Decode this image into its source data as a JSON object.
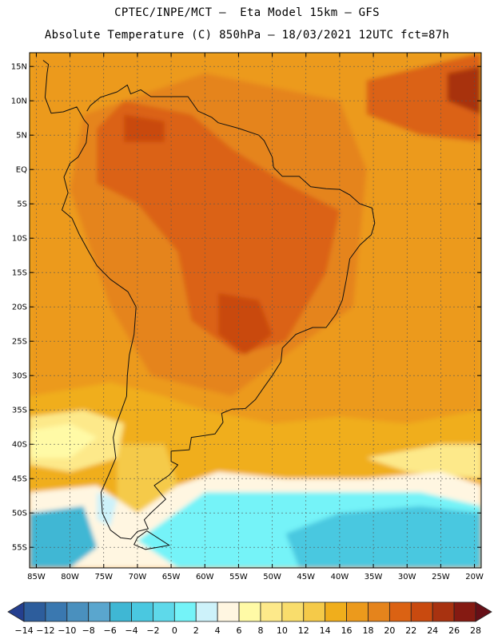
{
  "header": {
    "line1": "CPTEC/INPE/MCT –  Eta Model 15km – GFS",
    "line2": "Absolute Temperature (C) 850hPa – 18/03/2021 12UTC fct=87h"
  },
  "map": {
    "lon_range": [
      -86,
      -19
    ],
    "lat_range": [
      -58,
      17
    ],
    "lat_ticks": [
      {
        "value": 15,
        "label": "15N"
      },
      {
        "value": 10,
        "label": "10N"
      },
      {
        "value": 5,
        "label": "5N"
      },
      {
        "value": 0,
        "label": "EQ"
      },
      {
        "value": -5,
        "label": "5S"
      },
      {
        "value": -10,
        "label": "10S"
      },
      {
        "value": -15,
        "label": "15S"
      },
      {
        "value": -20,
        "label": "20S"
      },
      {
        "value": -25,
        "label": "25S"
      },
      {
        "value": -30,
        "label": "30S"
      },
      {
        "value": -35,
        "label": "35S"
      },
      {
        "value": -40,
        "label": "40S"
      },
      {
        "value": -45,
        "label": "45S"
      },
      {
        "value": -50,
        "label": "50S"
      },
      {
        "value": -55,
        "label": "55S"
      }
    ],
    "lon_ticks": [
      {
        "value": -85,
        "label": "85W"
      },
      {
        "value": -80,
        "label": "80W"
      },
      {
        "value": -75,
        "label": "75W"
      },
      {
        "value": -70,
        "label": "70W"
      },
      {
        "value": -65,
        "label": "65W"
      },
      {
        "value": -60,
        "label": "60W"
      },
      {
        "value": -55,
        "label": "55W"
      },
      {
        "value": -50,
        "label": "50W"
      },
      {
        "value": -45,
        "label": "45W"
      },
      {
        "value": -40,
        "label": "40W"
      },
      {
        "value": -35,
        "label": "35W"
      },
      {
        "value": -30,
        "label": "30W"
      },
      {
        "value": -25,
        "label": "25W"
      },
      {
        "value": -20,
        "label": "20W"
      }
    ],
    "temperature_regions": [
      {
        "level": 16,
        "polygon": [
          [
            -86,
            17
          ],
          [
            -19,
            17
          ],
          [
            -19,
            -35
          ],
          [
            -30,
            -37
          ],
          [
            -40,
            -36
          ],
          [
            -50,
            -37
          ],
          [
            -60,
            -35
          ],
          [
            -70,
            -32
          ],
          [
            -80,
            -33
          ],
          [
            -86,
            -33
          ]
        ]
      },
      {
        "level": 18,
        "polygon": [
          [
            -60,
            14
          ],
          [
            -40,
            10
          ],
          [
            -36,
            0
          ],
          [
            -38,
            -20
          ],
          [
            -48,
            -27
          ],
          [
            -56,
            -33
          ],
          [
            -68,
            -30
          ],
          [
            -74,
            -20
          ],
          [
            -80,
            -3
          ],
          [
            -78,
            8
          ]
        ]
      },
      {
        "level": 20,
        "polygon": [
          [
            -72,
            10
          ],
          [
            -62,
            8
          ],
          [
            -56,
            3
          ],
          [
            -48,
            -2
          ],
          [
            -40,
            -6
          ],
          [
            -42,
            -15
          ],
          [
            -48,
            -25
          ],
          [
            -55,
            -27
          ],
          [
            -62,
            -22
          ],
          [
            -64,
            -12
          ],
          [
            -70,
            -5
          ],
          [
            -76,
            -2
          ],
          [
            -76,
            6
          ]
        ]
      },
      {
        "level": 20,
        "polygon": [
          [
            -36,
            13
          ],
          [
            -19,
            17
          ],
          [
            -19,
            4
          ],
          [
            -28,
            5
          ],
          [
            -36,
            8
          ]
        ]
      },
      {
        "level": 22,
        "polygon": [
          [
            -58,
            -18
          ],
          [
            -52,
            -19
          ],
          [
            -50,
            -24
          ],
          [
            -54,
            -27
          ],
          [
            -58,
            -24
          ]
        ]
      },
      {
        "level": 22,
        "polygon": [
          [
            -72,
            8
          ],
          [
            -66,
            7
          ],
          [
            -66,
            4
          ],
          [
            -72,
            4
          ]
        ]
      },
      {
        "level": 24,
        "polygon": [
          [
            -24,
            14
          ],
          [
            -19,
            15
          ],
          [
            -19,
            8
          ],
          [
            -24,
            10
          ]
        ]
      },
      {
        "level": 14,
        "polygon": [
          [
            -86,
            -33
          ],
          [
            -74,
            -31
          ],
          [
            -66,
            -33
          ],
          [
            -58,
            -36
          ],
          [
            -50,
            -38
          ],
          [
            -40,
            -38
          ],
          [
            -30,
            -37
          ],
          [
            -19,
            -36
          ],
          [
            -19,
            -42
          ],
          [
            -30,
            -43
          ],
          [
            -42,
            -42
          ],
          [
            -52,
            -42
          ],
          [
            -60,
            -44
          ],
          [
            -70,
            -46
          ],
          [
            -80,
            -48
          ],
          [
            -86,
            -47
          ]
        ]
      },
      {
        "level": 12,
        "polygon": [
          [
            -73,
            -40
          ],
          [
            -66,
            -40
          ],
          [
            -64,
            -46
          ],
          [
            -69,
            -51
          ],
          [
            -73,
            -48
          ]
        ]
      },
      {
        "level": 8,
        "polygon": [
          [
            -86,
            -36
          ],
          [
            -78,
            -35
          ],
          [
            -72,
            -37
          ],
          [
            -73,
            -42
          ],
          [
            -80,
            -44
          ],
          [
            -86,
            -43
          ]
        ]
      },
      {
        "level": 8,
        "polygon": [
          [
            -36,
            -42
          ],
          [
            -25,
            -40
          ],
          [
            -19,
            -40
          ],
          [
            -19,
            -45
          ],
          [
            -30,
            -44
          ]
        ]
      },
      {
        "level": 6,
        "polygon": [
          [
            -86,
            -38
          ],
          [
            -80,
            -37
          ],
          [
            -76,
            -39
          ],
          [
            -80,
            -42
          ],
          [
            -86,
            -42
          ]
        ]
      },
      {
        "level": 4,
        "polygon": [
          [
            -86,
            -47
          ],
          [
            -76,
            -46
          ],
          [
            -70,
            -50
          ],
          [
            -64,
            -46
          ],
          [
            -58,
            -44
          ],
          [
            -48,
            -45
          ],
          [
            -36,
            -45
          ],
          [
            -25,
            -44
          ],
          [
            -19,
            -46
          ],
          [
            -19,
            -58
          ],
          [
            -86,
            -58
          ]
        ]
      },
      {
        "level": 0,
        "polygon": [
          [
            -60,
            -47
          ],
          [
            -48,
            -47
          ],
          [
            -38,
            -47
          ],
          [
            -28,
            -47
          ],
          [
            -19,
            -49
          ],
          [
            -19,
            -58
          ],
          [
            -64,
            -58
          ],
          [
            -70,
            -54
          ]
        ]
      },
      {
        "level": -4,
        "polygon": [
          [
            -40,
            -50
          ],
          [
            -28,
            -49
          ],
          [
            -19,
            -50
          ],
          [
            -19,
            -58
          ],
          [
            -46,
            -58
          ],
          [
            -48,
            -53
          ]
        ]
      },
      {
        "level": -6,
        "polygon": [
          [
            -86,
            -50
          ],
          [
            -78,
            -49
          ],
          [
            -76,
            -55
          ],
          [
            -80,
            -58
          ],
          [
            -86,
            -58
          ]
        ]
      },
      {
        "level": 2,
        "polygon": [
          [
            -76,
            -47
          ],
          [
            -73,
            -48
          ],
          [
            -74,
            -52
          ],
          [
            -76,
            -51
          ]
        ]
      }
    ],
    "coastline": [
      [
        -77.5,
        8.5
      ],
      [
        -77,
        9.3
      ],
      [
        -75.5,
        10.5
      ],
      [
        -73,
        11.3
      ],
      [
        -71.5,
        12.3
      ],
      [
        -71,
        11
      ],
      [
        -69.5,
        11.6
      ],
      [
        -68,
        10.6
      ],
      [
        -64,
        10.6
      ],
      [
        -62.5,
        10.6
      ],
      [
        -61,
        8.5
      ],
      [
        -59,
        7.6
      ],
      [
        -58,
        6.8
      ],
      [
        -55,
        6
      ],
      [
        -52,
        5
      ],
      [
        -51.2,
        4.2
      ],
      [
        -50,
        1.8
      ],
      [
        -49.8,
        0.3
      ],
      [
        -48.5,
        -1
      ],
      [
        -46,
        -1
      ],
      [
        -44.3,
        -2.5
      ],
      [
        -42,
        -2.8
      ],
      [
        -40,
        -2.9
      ],
      [
        -38.5,
        -3.7
      ],
      [
        -37,
        -5
      ],
      [
        -35.2,
        -5.6
      ],
      [
        -34.8,
        -7.8
      ],
      [
        -35.3,
        -9.5
      ],
      [
        -37,
        -11
      ],
      [
        -38.5,
        -13
      ],
      [
        -39,
        -16
      ],
      [
        -39.6,
        -19
      ],
      [
        -40.5,
        -21
      ],
      [
        -42,
        -23
      ],
      [
        -44,
        -23
      ],
      [
        -46.5,
        -24
      ],
      [
        -48.5,
        -26
      ],
      [
        -48.7,
        -28
      ],
      [
        -50,
        -30
      ],
      [
        -51.3,
        -31.8
      ],
      [
        -52.5,
        -33.5
      ],
      [
        -54,
        -34.8
      ],
      [
        -56,
        -34.9
      ],
      [
        -57.5,
        -35.5
      ],
      [
        -57.3,
        -36.8
      ],
      [
        -58.5,
        -38.5
      ],
      [
        -62,
        -39
      ],
      [
        -62.3,
        -40.8
      ],
      [
        -65,
        -41
      ],
      [
        -65,
        -42.5
      ],
      [
        -64,
        -43
      ],
      [
        -65.3,
        -44.5
      ],
      [
        -67.5,
        -46
      ],
      [
        -66.5,
        -47.2
      ],
      [
        -65.8,
        -48
      ],
      [
        -67.8,
        -49.8
      ],
      [
        -69,
        -51
      ],
      [
        -68.4,
        -52.3
      ],
      [
        -70,
        -52.7
      ],
      [
        -71,
        -53.8
      ],
      [
        -72.5,
        -53.6
      ],
      [
        -74,
        -52.5
      ],
      [
        -75.2,
        -50
      ],
      [
        -75.4,
        -47
      ],
      [
        -74.5,
        -45
      ],
      [
        -73.2,
        -42
      ],
      [
        -73.6,
        -39
      ],
      [
        -73.1,
        -37
      ],
      [
        -71.6,
        -33
      ],
      [
        -71.5,
        -30
      ],
      [
        -71.2,
        -27
      ],
      [
        -70.5,
        -24
      ],
      [
        -70.2,
        -20
      ],
      [
        -71.4,
        -17.8
      ],
      [
        -74,
        -16
      ],
      [
        -76,
        -14
      ],
      [
        -77.2,
        -12
      ],
      [
        -78.6,
        -9.5
      ],
      [
        -79.7,
        -7.1
      ],
      [
        -81.2,
        -5.9
      ],
      [
        -80.3,
        -3.4
      ],
      [
        -80.9,
        -1.1
      ],
      [
        -80,
        0.9
      ],
      [
        -78.8,
        1.8
      ],
      [
        -77.6,
        3.9
      ],
      [
        -77.3,
        6.5
      ],
      [
        -77.9,
        7.2
      ],
      [
        -79,
        9.1
      ],
      [
        -81,
        8.4
      ],
      [
        -82.8,
        8.2
      ],
      [
        -83.7,
        10.5
      ],
      [
        -83.4,
        14
      ],
      [
        -83.2,
        15.3
      ],
      [
        -84,
        15.9
      ]
    ],
    "fuego": [
      [
        -68.6,
        -52.6
      ],
      [
        -65.3,
        -54.7
      ],
      [
        -67,
        -55
      ],
      [
        -68.8,
        -55.3
      ],
      [
        -70.5,
        -54.6
      ],
      [
        -70,
        -53.6
      ]
    ]
  },
  "colorbar": {
    "labels": [
      "-14",
      "-12",
      "-10",
      "-8",
      "-6",
      "-4",
      "-2",
      "0",
      "2",
      "4",
      "6",
      "8",
      "10",
      "12",
      "14",
      "16",
      "18",
      "20",
      "22",
      "24",
      "26",
      "28"
    ],
    "colors": [
      "#243f8f",
      "#2d5d9c",
      "#3a78b0",
      "#4a90be",
      "#5aa6ce",
      "#3fb7d4",
      "#4ac8e0",
      "#5ed9ea",
      "#74f3f8",
      "#cdf2fa",
      "#fff6e1",
      "#fffaa6",
      "#fde98a",
      "#f9dd6c",
      "#f5ca49",
      "#f0ae1c",
      "#ec9a1c",
      "#e5841c",
      "#db6213",
      "#c94a0f",
      "#a83210",
      "#851a12",
      "#660f17"
    ]
  }
}
